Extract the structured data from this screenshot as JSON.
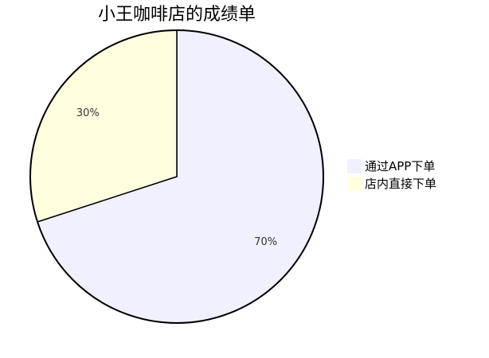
{
  "chart_data": {
    "type": "pie",
    "title": "小王咖啡店的成绩单",
    "slices": [
      {
        "name": "通过APP下单",
        "value": 70,
        "label": "70%",
        "color": "#f0f0ff"
      },
      {
        "name": "店内直接下单",
        "value": 30,
        "label": "30%",
        "color": "#ffffe0"
      }
    ],
    "stroke_color": "#000000",
    "legend": {
      "placement": "right",
      "entries": [
        "通过APP下单",
        "店内直接下单"
      ]
    }
  }
}
